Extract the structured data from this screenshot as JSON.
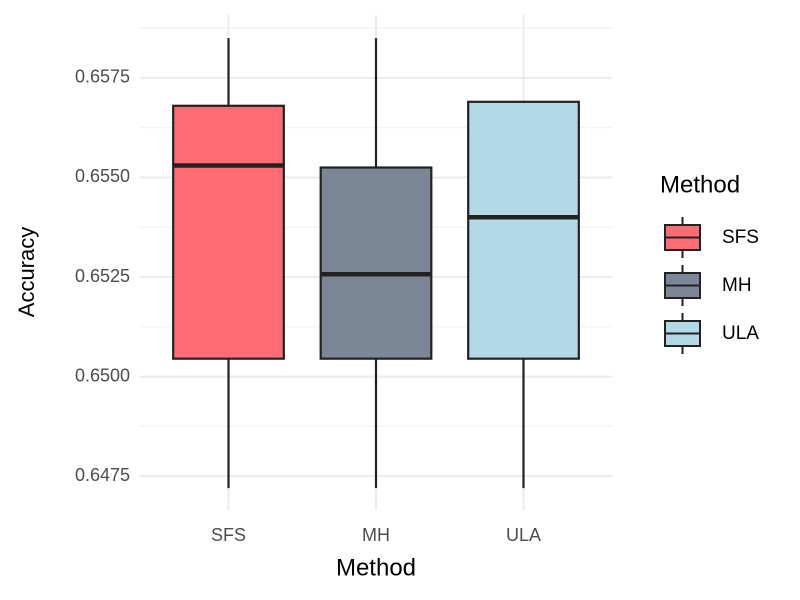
{
  "chart_data": {
    "type": "box",
    "x_label": "Method",
    "y_label": "Accuracy",
    "categories": [
      "SFS",
      "MH",
      "ULA"
    ],
    "series": [
      {
        "name": "SFS",
        "color": "#fe6b75",
        "min": 0.6472,
        "q1": 0.65045,
        "median": 0.6553,
        "q3": 0.6568,
        "max": 0.6585
      },
      {
        "name": "MH",
        "color": "#7b8797",
        "min": 0.6472,
        "q1": 0.65045,
        "median": 0.65257,
        "q3": 0.65525,
        "max": 0.6585
      },
      {
        "name": "ULA",
        "color": "#b3d9e7",
        "min": 0.6472,
        "q1": 0.65045,
        "median": 0.654,
        "q3": 0.6569,
        "max": 0.6569
      }
    ],
    "ylim": [
      0.64665,
      0.65908
    ],
    "yticks": [
      0.6475,
      {
        "value": 0.65,
        "label": "0.6500"
      },
      0.6525,
      {
        "value": 0.655,
        "label": "0.6550"
      },
      0.6575
    ],
    "minor_yticks": [
      0.64875,
      0.65125,
      0.65375,
      0.65625,
      0.65875
    ],
    "grid": true,
    "legend": {
      "title": "Method",
      "position": "right"
    }
  }
}
